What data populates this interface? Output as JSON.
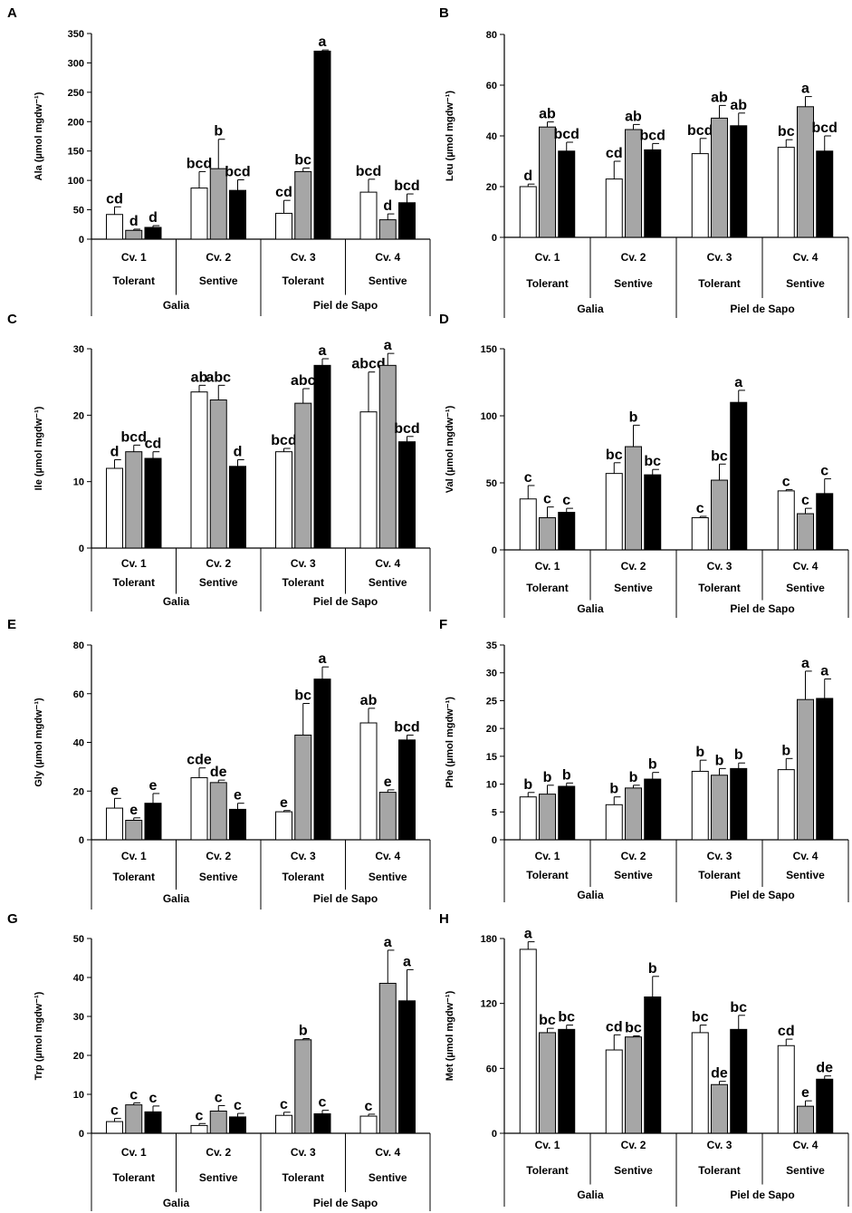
{
  "chart_data": [
    {
      "panel": "A",
      "type": "bar",
      "ylabel": "Ala (µmol mgdw⁻¹)",
      "ylim": [
        0,
        350
      ],
      "yticks": [
        0,
        50,
        100,
        150,
        200,
        250,
        300,
        350
      ],
      "cultivars": [
        "Cv. 1",
        "Cv. 2",
        "Cv. 3",
        "Cv. 4"
      ],
      "tolerance": [
        "Tolerant",
        "Sentive",
        "Tolerant",
        "Sentive"
      ],
      "types": [
        "Galia",
        "Piel de Sapo"
      ],
      "series_colors": [
        "#ffffff",
        "#a6a6a6",
        "#000000"
      ],
      "values": [
        [
          42,
          15,
          20
        ],
        [
          87,
          120,
          83
        ],
        [
          44,
          115,
          320
        ],
        [
          80,
          33,
          62
        ]
      ],
      "errors": [
        [
          13,
          2,
          3
        ],
        [
          28,
          50,
          18
        ],
        [
          22,
          6,
          2
        ],
        [
          22,
          10,
          15
        ]
      ],
      "labels": [
        [
          "cd",
          "d",
          "d"
        ],
        [
          "bcd",
          "b",
          "bcd"
        ],
        [
          "cd",
          "bc",
          "a"
        ],
        [
          "bcd",
          "d",
          "bcd"
        ]
      ]
    },
    {
      "panel": "B",
      "type": "bar",
      "ylabel": "Leu (µmol mgdw⁻¹)",
      "ylim": [
        0,
        80
      ],
      "yticks": [
        0,
        20,
        40,
        60,
        80
      ],
      "cultivars": [
        "Cv. 1",
        "Cv. 2",
        "Cv. 3",
        "Cv. 4"
      ],
      "tolerance": [
        "Tolerant",
        "Sentive",
        "Tolerant",
        "Sentive"
      ],
      "types": [
        "Galia",
        "Piel de Sapo"
      ],
      "series_colors": [
        "#ffffff",
        "#a6a6a6",
        "#000000"
      ],
      "values": [
        [
          20,
          43.5,
          34
        ],
        [
          23,
          42.5,
          34.5
        ],
        [
          33,
          47,
          44
        ],
        [
          35.5,
          51.5,
          34
        ]
      ],
      "errors": [
        [
          1,
          2,
          3.5
        ],
        [
          7,
          2,
          2.5
        ],
        [
          6,
          5,
          5
        ],
        [
          3,
          4,
          6
        ]
      ],
      "labels": [
        [
          "d",
          "ab",
          "bcd"
        ],
        [
          "cd",
          "ab",
          "bcd"
        ],
        [
          "bcd",
          "ab",
          "ab"
        ],
        [
          "bc",
          "a",
          "bcd"
        ]
      ]
    },
    {
      "panel": "C",
      "type": "bar",
      "ylabel": "Ile (µmol mgdw⁻¹)",
      "ylim": [
        0,
        30
      ],
      "yticks": [
        0,
        10,
        20,
        30
      ],
      "cultivars": [
        "Cv. 1",
        "Cv. 2",
        "Cv. 3",
        "Cv. 4"
      ],
      "tolerance": [
        "Tolerant",
        "Sentive",
        "Tolerant",
        "Sentive"
      ],
      "types": [
        "Galia",
        "Piel de Sapo"
      ],
      "series_colors": [
        "#ffffff",
        "#a6a6a6",
        "#000000"
      ],
      "values": [
        [
          12,
          14.5,
          13.5
        ],
        [
          23.5,
          22.3,
          12.3
        ],
        [
          14.5,
          21.8,
          27.5
        ],
        [
          20.5,
          27.5,
          16
        ]
      ],
      "errors": [
        [
          1.3,
          1,
          1
        ],
        [
          1,
          2.2,
          1
        ],
        [
          0.5,
          2.2,
          1
        ],
        [
          6,
          1.8,
          0.8
        ]
      ],
      "labels": [
        [
          "d",
          "bcd",
          "cd"
        ],
        [
          "ab",
          "abc",
          "d"
        ],
        [
          "bcd",
          "abc",
          "a"
        ],
        [
          "abcd",
          "a",
          "bcd"
        ]
      ]
    },
    {
      "panel": "D",
      "type": "bar",
      "ylabel": "Val (µmol mgdw⁻¹)",
      "ylim": [
        0,
        150
      ],
      "yticks": [
        0,
        50,
        100,
        150
      ],
      "cultivars": [
        "Cv. 1",
        "Cv. 2",
        "Cv. 3",
        "Cv. 4"
      ],
      "tolerance": [
        "Tolerant",
        "Sentive",
        "Tolerant",
        "Sentive"
      ],
      "types": [
        "Galia",
        "Piel de Sapo"
      ],
      "series_colors": [
        "#ffffff",
        "#a6a6a6",
        "#000000"
      ],
      "values": [
        [
          38,
          24,
          28
        ],
        [
          57,
          77,
          56
        ],
        [
          24,
          52,
          110
        ],
        [
          44,
          27,
          42
        ]
      ],
      "errors": [
        [
          10,
          8,
          3
        ],
        [
          8,
          16,
          4
        ],
        [
          1,
          12,
          9
        ],
        [
          1,
          4,
          11
        ]
      ],
      "labels": [
        [
          "c",
          "c",
          "c"
        ],
        [
          "bc",
          "b",
          "bc"
        ],
        [
          "c",
          "bc",
          "a"
        ],
        [
          "c",
          "c",
          "c"
        ]
      ]
    },
    {
      "panel": "E",
      "type": "bar",
      "ylabel": "Gly (µmol mgdw⁻¹)",
      "ylim": [
        0,
        80
      ],
      "yticks": [
        0,
        20,
        40,
        60,
        80
      ],
      "cultivars": [
        "Cv. 1",
        "Cv. 2",
        "Cv. 3",
        "Cv. 4"
      ],
      "tolerance": [
        "Tolerant",
        "Sentive",
        "Tolerant",
        "Sentive"
      ],
      "types": [
        "Galia",
        "Piel de Sapo"
      ],
      "series_colors": [
        "#ffffff",
        "#a6a6a6",
        "#000000"
      ],
      "values": [
        [
          13,
          8,
          15
        ],
        [
          25.5,
          23.5,
          12.5
        ],
        [
          11.5,
          43,
          66
        ],
        [
          48,
          19.5,
          41
        ]
      ],
      "errors": [
        [
          4,
          1,
          4
        ],
        [
          4,
          1,
          2.5
        ],
        [
          0.5,
          13,
          5
        ],
        [
          6,
          1,
          2
        ]
      ],
      "labels": [
        [
          "e",
          "e",
          "e"
        ],
        [
          "cde",
          "de",
          "e"
        ],
        [
          "e",
          "bc",
          "a"
        ],
        [
          "ab",
          "e",
          "bcd"
        ]
      ]
    },
    {
      "panel": "F",
      "type": "bar",
      "ylabel": "Phe (µmol mgdw⁻¹)",
      "ylim": [
        0,
        35
      ],
      "yticks": [
        0,
        5,
        10,
        15,
        20,
        25,
        30,
        35
      ],
      "cultivars": [
        "Cv. 1",
        "Cv. 2",
        "Cv. 3",
        "Cv. 4"
      ],
      "tolerance": [
        "Tolerant",
        "Sentive",
        "Tolerant",
        "Sentive"
      ],
      "types": [
        "Galia",
        "Piel de Sapo"
      ],
      "series_colors": [
        "#ffffff",
        "#a6a6a6",
        "#000000"
      ],
      "values": [
        [
          7.7,
          8.2,
          9.6
        ],
        [
          6.3,
          9.3,
          10.9
        ],
        [
          12.3,
          11.6,
          12.8
        ],
        [
          12.6,
          25.2,
          25.4
        ]
      ],
      "errors": [
        [
          0.8,
          1.6,
          0.6
        ],
        [
          1.4,
          0.5,
          1.2
        ],
        [
          2,
          1.2,
          1
        ],
        [
          2,
          5.1,
          3.5
        ]
      ],
      "labels": [
        [
          "b",
          "b",
          "b"
        ],
        [
          "b",
          "b",
          "b"
        ],
        [
          "b",
          "b",
          "b"
        ],
        [
          "b",
          "a",
          "a"
        ]
      ]
    },
    {
      "panel": "G",
      "type": "bar",
      "ylabel": "Trp (µmol mgdw⁻¹)",
      "ylim": [
        0,
        50
      ],
      "yticks": [
        0,
        10,
        20,
        30,
        40,
        50
      ],
      "cultivars": [
        "Cv. 1",
        "Cv. 2",
        "Cv. 3",
        "Cv. 4"
      ],
      "tolerance": [
        "Tolerant",
        "Sentive",
        "Tolerant",
        "Sentive"
      ],
      "types": [
        "Galia",
        "Piel de Sapo"
      ],
      "series_colors": [
        "#ffffff",
        "#a6a6a6",
        "#000000"
      ],
      "values": [
        [
          3,
          7.3,
          5.5
        ],
        [
          2,
          5.7,
          4.2
        ],
        [
          4.6,
          24,
          5
        ],
        [
          4.4,
          38.5,
          34
        ]
      ],
      "errors": [
        [
          0.8,
          0.5,
          1.5
        ],
        [
          0.5,
          1.4,
          0.9
        ],
        [
          0.8,
          0.3,
          0.9
        ],
        [
          0.5,
          8.5,
          8
        ]
      ],
      "labels": [
        [
          "c",
          "c",
          "c"
        ],
        [
          "c",
          "c",
          "c"
        ],
        [
          "c",
          "b",
          "c"
        ],
        [
          "c",
          "a",
          "a"
        ]
      ]
    },
    {
      "panel": "H",
      "type": "bar",
      "ylabel": "Met (µmol mgdw⁻¹)",
      "ylim": [
        0,
        180
      ],
      "yticks": [
        0,
        60,
        120,
        180
      ],
      "cultivars": [
        "Cv. 1",
        "Cv. 2",
        "Cv. 3",
        "Cv. 4"
      ],
      "tolerance": [
        "Tolerant",
        "Sentive",
        "Tolerant",
        "Sentive"
      ],
      "types": [
        "Galia",
        "Piel de Sapo"
      ],
      "series_colors": [
        "#ffffff",
        "#a6a6a6",
        "#000000"
      ],
      "values": [
        [
          170,
          93,
          96
        ],
        [
          77,
          89,
          126
        ],
        [
          93,
          45,
          96
        ],
        [
          81,
          25,
          50
        ]
      ],
      "errors": [
        [
          7,
          4,
          4
        ],
        [
          14,
          1,
          19
        ],
        [
          7,
          3,
          13
        ],
        [
          6,
          5,
          3
        ]
      ],
      "labels": [
        [
          "a",
          "bc",
          "bc"
        ],
        [
          "cd",
          "bc",
          "b"
        ],
        [
          "bc",
          "de",
          "bc"
        ],
        [
          "cd",
          "e",
          "de"
        ]
      ]
    }
  ]
}
